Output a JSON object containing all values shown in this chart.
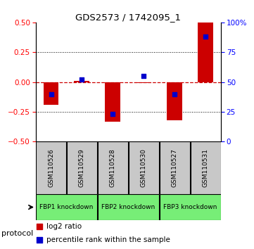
{
  "title": "GDS2573 / 1742095_1",
  "samples": [
    "GSM110526",
    "GSM110529",
    "GSM110528",
    "GSM110530",
    "GSM110527",
    "GSM110531"
  ],
  "log2_ratio": [
    -0.19,
    0.01,
    -0.33,
    -0.01,
    -0.32,
    0.5
  ],
  "percentile_rank": [
    40,
    52,
    23,
    55,
    40,
    88
  ],
  "protocols": [
    {
      "label": "FBP1 knockdown",
      "samples": [
        0,
        1
      ],
      "color": "#77EE77"
    },
    {
      "label": "FBP2 knockdown",
      "samples": [
        2,
        3
      ],
      "color": "#77EE77"
    },
    {
      "label": "FBP3 knockdown",
      "samples": [
        4,
        5
      ],
      "color": "#77EE77"
    }
  ],
  "ylim_left": [
    -0.5,
    0.5
  ],
  "ylim_right": [
    0,
    100
  ],
  "yticks_left": [
    -0.5,
    -0.25,
    0,
    0.25,
    0.5
  ],
  "yticks_right": [
    0,
    25,
    50,
    75,
    100
  ],
  "bar_color": "#CC0000",
  "dot_color": "#0000CC",
  "bar_width": 0.5,
  "dot_size": 25,
  "hline_color": "#CC0000",
  "grid_color": "black",
  "bg_color": "white",
  "sample_box_color": "#C8C8C8",
  "legend_red": "log2 ratio",
  "legend_blue": "percentile rank within the sample"
}
